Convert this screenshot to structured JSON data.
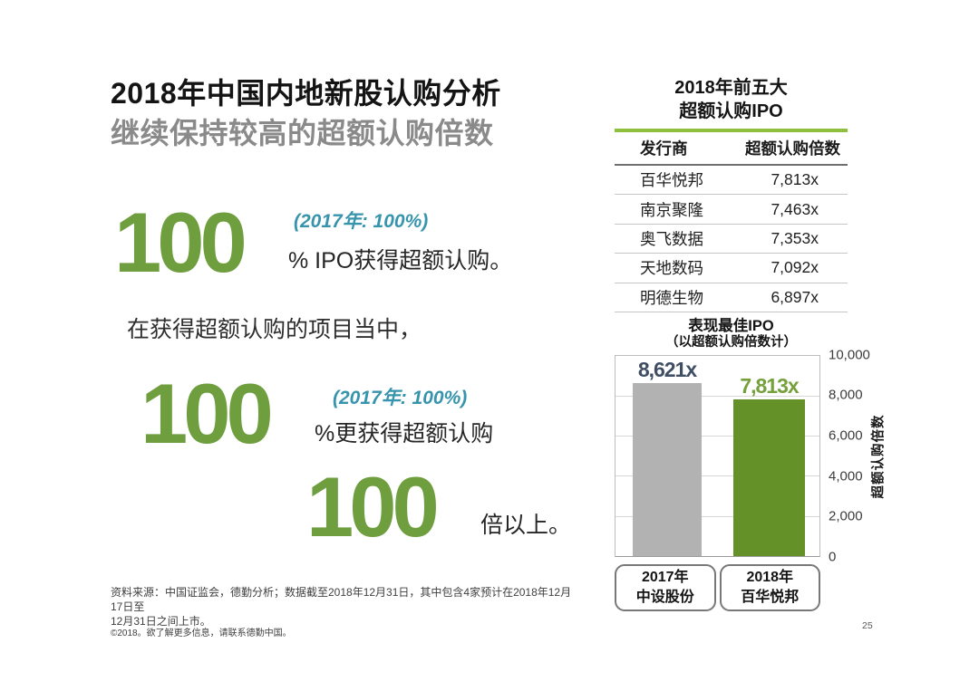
{
  "header": {
    "title": "2018年中国内地新股认购分析",
    "subtitle": "继续保持较高的超额认购倍数"
  },
  "stats": {
    "stat1": {
      "value": "100",
      "annotation": "(2017年: 100%)",
      "suffix": "% IPO获得超额认购。"
    },
    "lead": "在获得超额认购的项目当中，",
    "stat2": {
      "value": "100",
      "annotation": "(2017年: 100%)",
      "suffix": "%更获得超额认购"
    },
    "stat3": {
      "value": "100",
      "suffix": "倍以上。"
    }
  },
  "table": {
    "title_line1": "2018年前五大",
    "title_line2": "超额认购IPO",
    "columns": [
      "发行商",
      "超额认购倍数"
    ],
    "rows": [
      [
        "百华悦邦",
        "7,813x"
      ],
      [
        "南京聚隆",
        "7,463x"
      ],
      [
        "奥飞数据",
        "7,353x"
      ],
      [
        "天地数码",
        "7,092x"
      ],
      [
        "明德生物",
        "6,897x"
      ]
    ]
  },
  "chart_data": {
    "type": "bar",
    "title": "表现最佳IPO",
    "subtitle": "（以超额认购倍数计）",
    "categories": [
      {
        "year": "2017年",
        "name": "中设股份"
      },
      {
        "year": "2018年",
        "name": "百华悦邦"
      }
    ],
    "values": [
      8621,
      7813
    ],
    "data_labels": [
      "8,621x",
      "7,813x"
    ],
    "bar_colors": [
      "#b2b2b2",
      "#649128"
    ],
    "data_label_colors": [
      "#3f4e63",
      "#76a03c"
    ],
    "ylabel": "超额认购倍数",
    "ylim": [
      0,
      10000
    ],
    "ytick_labels": [
      "10,000",
      "8,000",
      "6,000",
      "4,000",
      "2,000",
      "0"
    ],
    "grid": "horizontal",
    "legend": "none"
  },
  "footer": {
    "source_note": "资料来源：中国证监会，德勤分析；数据截至2018年12月31日，其中包含4家预计在2018年12月17日至\n12月31日之间上市。",
    "copyright": "©2018。欲了解更多信息，请联系德勤中国。",
    "page_number": "25"
  },
  "colors": {
    "green": "#6f9e3f",
    "teal": "#3794ad",
    "rule-green": "#8fc03c",
    "bar-gray": "#b2b2b2",
    "bar-green": "#649128",
    "label-green": "#76a03c",
    "slate": "#3f4e63"
  }
}
